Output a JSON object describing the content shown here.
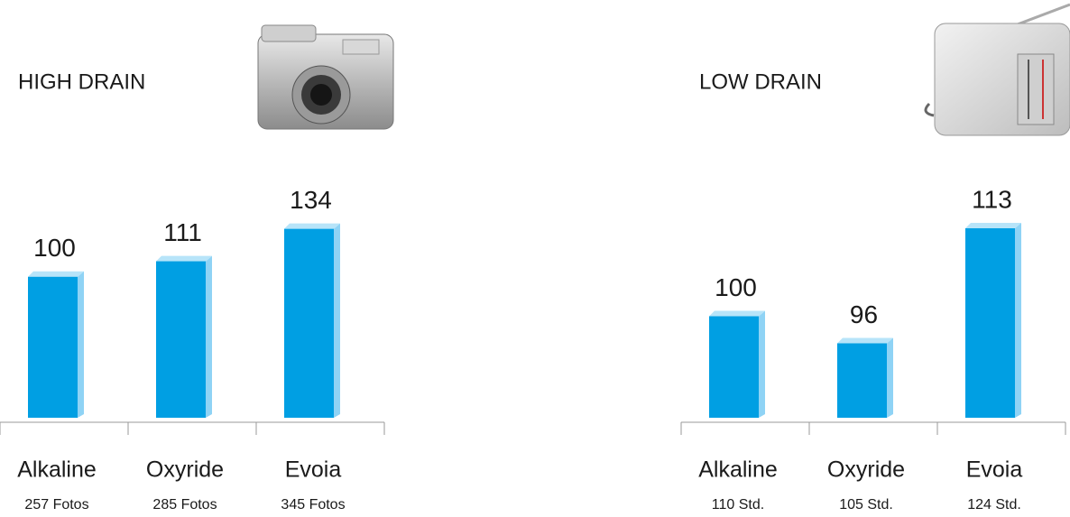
{
  "chart_data": [
    {
      "type": "bar",
      "title": "HIGH DRAIN",
      "categories": [
        "Alkaline",
        "Oxyride",
        "Evoia"
      ],
      "sublabels": [
        "257 Fotos",
        "285 Fotos",
        "345 Fotos"
      ],
      "values": [
        100,
        111,
        134
      ],
      "color": "#009fe3",
      "ylim": [
        0,
        144
      ]
    },
    {
      "type": "bar",
      "title": "LOW DRAIN",
      "categories": [
        "Alkaline",
        "Oxyride",
        "Evoia"
      ],
      "sublabels": [
        "110 Std.",
        "105 Std.",
        "124 Std."
      ],
      "values": [
        100,
        96,
        113
      ],
      "color": "#009fe3",
      "ylim": [
        85,
        115
      ]
    }
  ]
}
